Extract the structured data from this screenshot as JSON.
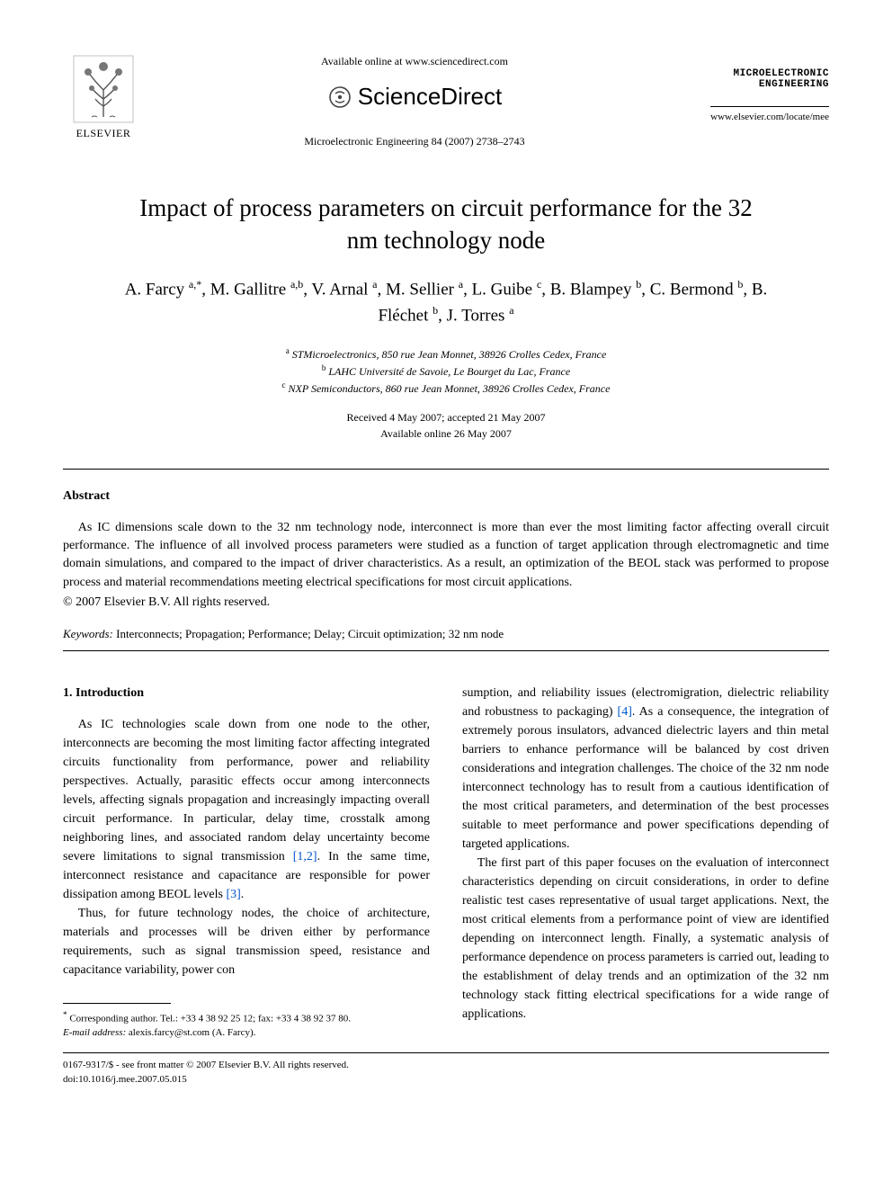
{
  "header": {
    "publisher": "ELSEVIER",
    "available_online": "Available online at www.sciencedirect.com",
    "sciencedirect": "ScienceDirect",
    "journal_ref": "Microelectronic Engineering 84 (2007) 2738–2743",
    "journal_logo_line1": "MICROELECTRONIC",
    "journal_logo_line2": "ENGINEERING",
    "journal_url": "www.elsevier.com/locate/mee"
  },
  "title": "Impact of process parameters on circuit performance for the 32 nm technology node",
  "authors_html": "A. Farcy <sup>a,*</sup>, M. Gallitre <sup>a,b</sup>, V. Arnal <sup>a</sup>, M. Sellier <sup>a</sup>, L. Guibe <sup>c</sup>, B. Blampey <sup>b</sup>, C. Bermond <sup>b</sup>, B. Fléchet <sup>b</sup>, J. Torres <sup>a</sup>",
  "affiliations": {
    "a": "STMicroelectronics, 850 rue Jean Monnet, 38926 Crolles Cedex, France",
    "b": "LAHC Université de Savoie, Le Bourget du Lac, France",
    "c": "NXP Semiconductors, 860 rue Jean Monnet, 38926 Crolles Cedex, France"
  },
  "dates": {
    "received_accepted": "Received 4 May 2007; accepted 21 May 2007",
    "online": "Available online 26 May 2007"
  },
  "abstract": {
    "heading": "Abstract",
    "text": "As IC dimensions scale down to the 32 nm technology node, interconnect is more than ever the most limiting factor affecting overall circuit performance. The influence of all involved process parameters were studied as a function of target application through electromagnetic and time domain simulations, and compared to the impact of driver characteristics. As a result, an optimization of the BEOL stack was performed to propose process and material recommendations meeting electrical specifications for most circuit applications.",
    "copyright": "© 2007 Elsevier B.V. All rights reserved."
  },
  "keywords": {
    "label": "Keywords:",
    "text": " Interconnects; Propagation; Performance; Delay; Circuit optimization; 32 nm node"
  },
  "intro": {
    "heading": "1. Introduction",
    "p1a": "As IC technologies scale down from one node to the other, interconnects are becoming the most limiting factor affecting integrated circuits functionality from performance, power and reliability perspectives. Actually, parasitic effects occur among interconnects levels, affecting signals propagation and increasingly impacting overall circuit performance. In particular, delay time, crosstalk among neighboring lines, and associated random delay uncertainty become severe limitations to signal transmission ",
    "ref1": "[1,2]",
    "p1b": ". In the same time, interconnect resistance and capacitance are responsible for power dissipation among BEOL levels ",
    "ref2": "[3]",
    "p1c": ".",
    "p2": "Thus, for future technology nodes, the choice of architecture, materials and processes will be driven either by performance requirements, such as signal transmission speed, resistance and capacitance variability, power con",
    "p3a": "sumption, and reliability issues (electromigration, dielectric reliability and robustness to packaging) ",
    "ref3": "[4]",
    "p3b": ". As a consequence, the integration of extremely porous insulators, advanced dielectric layers and thin metal barriers to enhance performance will be balanced by cost driven considerations and integration challenges. The choice of the 32 nm node interconnect technology has to result from a cautious identification of the most critical parameters, and determination of the best processes suitable to meet performance and power specifications depending of targeted applications.",
    "p4": "The first part of this paper focuses on the evaluation of interconnect characteristics depending on circuit considerations, in order to define realistic test cases representative of usual target applications. Next, the most critical elements from a performance point of view are identified depending on interconnect length. Finally, a systematic analysis of performance dependence on process parameters is carried out, leading to the establishment of delay trends and an optimization of the 32 nm technology stack fitting electrical specifications for a wide range of applications."
  },
  "footnote": {
    "corresponding": "Corresponding author. Tel.: +33 4 38 92 25 12; fax: +33 4 38 92 37 80.",
    "email_label": "E-mail address:",
    "email": " alexis.farcy@st.com (A. Farcy)."
  },
  "footer": {
    "front_matter": "0167-9317/$ - see front matter © 2007 Elsevier B.V. All rights reserved.",
    "doi": "doi:10.1016/j.mee.2007.05.015"
  },
  "colors": {
    "text": "#000000",
    "background": "#ffffff",
    "link": "#0055cc",
    "elsevier_orange": "#ff6600"
  }
}
